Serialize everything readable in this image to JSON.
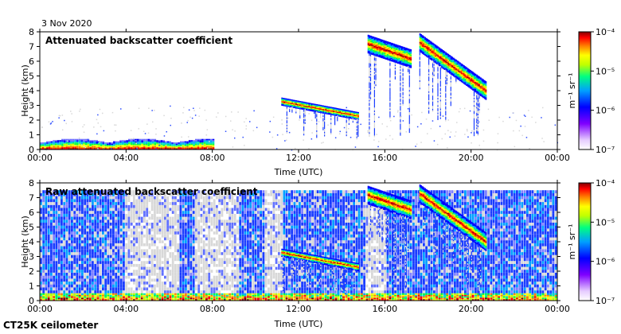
{
  "date_label": "3 Nov 2020",
  "instrument_label": "CT25K ceilometer",
  "chart_data": [
    {
      "type": "heatmap",
      "title": "Attenuated backscatter coefficient",
      "xlabel": "Time (UTC)",
      "ylabel": "Height (km)",
      "xlim_hours": [
        0,
        24
      ],
      "ylim_km": [
        0,
        8
      ],
      "xticks": [
        "00:00",
        "04:00",
        "08:00",
        "12:00",
        "16:00",
        "20:00",
        "00:00"
      ],
      "yticks": [
        "0",
        "1",
        "2",
        "3",
        "4",
        "5",
        "6",
        "7",
        "8"
      ],
      "grid": false,
      "scale": "log",
      "colorbar": {
        "label": "m⁻¹ sr⁻¹",
        "ticks": [
          "10⁻⁴",
          "10⁻⁵",
          "10⁻⁶",
          "10⁻⁷"
        ],
        "range": [
          1e-07,
          0.0001
        ],
        "colors": [
          "#ffffff",
          "#ff00ff",
          "#0000ff",
          "#00ffff",
          "#00ff00",
          "#ffff00",
          "#ff0000",
          "#7f0000"
        ]
      },
      "features": [
        {
          "name": "boundary layer aerosol",
          "t_start": 0.0,
          "t_end": 8.0,
          "h_top": 0.7
        },
        {
          "name": "cloud layer",
          "t_start": 11.2,
          "t_end": 14.8,
          "h_start": 3.3,
          "h_end": 2.3
        },
        {
          "name": "cloud layer",
          "t_start": 15.2,
          "t_end": 17.2,
          "h_start": 7.2,
          "h_end": 6.2
        },
        {
          "name": "cloud layer",
          "t_start": 17.6,
          "t_end": 20.7,
          "h_start": 7.3,
          "h_end": 4.0
        }
      ]
    },
    {
      "type": "heatmap",
      "title": "Raw attenuated backscatter coefficient",
      "xlabel": "Time (UTC)",
      "ylabel": "Height (km)",
      "xlim_hours": [
        0,
        24
      ],
      "ylim_km": [
        0,
        8
      ],
      "xticks": [
        "00:00",
        "04:00",
        "08:00",
        "12:00",
        "16:00",
        "20:00",
        "00:00"
      ],
      "yticks": [
        "0",
        "1",
        "2",
        "3",
        "4",
        "5",
        "6",
        "7",
        "8"
      ],
      "grid": false,
      "scale": "log",
      "colorbar": {
        "label": "m⁻¹ sr⁻¹",
        "ticks": [
          "10⁻⁴",
          "10⁻⁵",
          "10⁻⁶",
          "10⁻⁷"
        ],
        "range": [
          1e-07,
          0.0001
        ],
        "colors": [
          "#ffffff",
          "#ff00ff",
          "#0000ff",
          "#00ffff",
          "#00ff00",
          "#ffff00",
          "#ff0000",
          "#7f0000"
        ]
      },
      "features": [
        {
          "name": "noisy background",
          "t_start": 0.0,
          "t_end": 24.0,
          "h_top": 7.5
        },
        {
          "name": "cloud layer",
          "t_start": 11.2,
          "t_end": 14.8,
          "h_start": 3.3,
          "h_end": 2.3
        },
        {
          "name": "cloud layer",
          "t_start": 15.2,
          "t_end": 17.2,
          "h_start": 7.2,
          "h_end": 6.2
        },
        {
          "name": "cloud layer",
          "t_start": 17.6,
          "t_end": 20.7,
          "h_start": 7.3,
          "h_end": 4.0
        }
      ]
    }
  ]
}
